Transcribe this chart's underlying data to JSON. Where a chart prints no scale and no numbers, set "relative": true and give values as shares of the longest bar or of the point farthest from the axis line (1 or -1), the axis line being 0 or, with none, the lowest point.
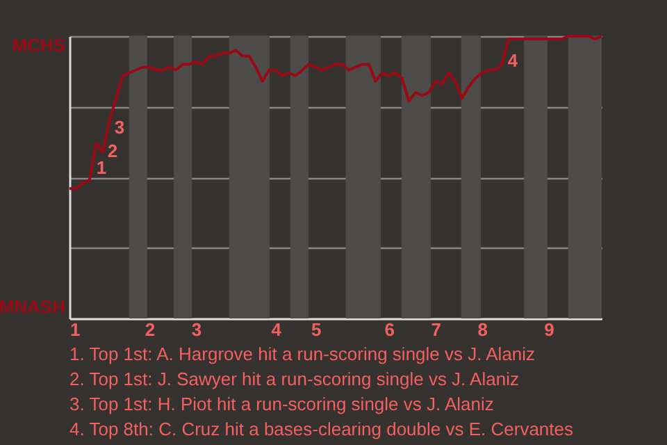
{
  "chart_data": {
    "type": "line",
    "relative": true,
    "grid": "y",
    "marker": "none",
    "line_style": "solid",
    "categories": [
      "1",
      null,
      null,
      null,
      null,
      null,
      null,
      null,
      null,
      null,
      null,
      null,
      "2",
      null,
      null,
      null,
      null,
      null,
      null,
      "3",
      null,
      null,
      null,
      null,
      null,
      null,
      null,
      null,
      null,
      null,
      null,
      "4",
      null,
      null,
      null,
      null,
      null,
      "5",
      null,
      null,
      null,
      null,
      null,
      null,
      null,
      null,
      null,
      null,
      "6",
      null,
      null,
      null,
      null,
      null,
      null,
      "7",
      null,
      null,
      null,
      null,
      null,
      null,
      "8",
      null,
      null,
      null,
      null,
      null,
      null,
      null,
      null,
      null,
      "9",
      null,
      null,
      null,
      null,
      null,
      null,
      null,
      null
    ],
    "series": [
      {
        "color": "#9a0a14",
        "values": [
          0.46,
          0.46,
          0.48,
          0.49,
          0.62,
          0.59,
          0.7,
          0.78,
          0.86,
          0.87,
          0.88,
          0.89,
          0.89,
          0.88,
          0.88,
          0.89,
          0.88,
          0.9,
          0.9,
          0.91,
          0.9,
          0.93,
          0.93,
          0.94,
          0.94,
          0.95,
          0.93,
          0.93,
          0.89,
          0.84,
          0.88,
          0.88,
          0.86,
          0.87,
          0.86,
          0.88,
          0.9,
          0.89,
          0.88,
          0.89,
          0.9,
          0.9,
          0.88,
          0.89,
          0.9,
          0.9,
          0.84,
          0.87,
          0.86,
          0.87,
          0.85,
          0.77,
          0.8,
          0.79,
          0.8,
          0.84,
          0.83,
          0.87,
          0.84,
          0.78,
          0.82,
          0.85,
          0.87,
          0.88,
          0.88,
          0.9,
          0.99,
          0.99,
          0.99,
          0.99,
          0.99,
          0.99,
          0.99,
          0.99,
          0.99,
          1.0,
          1.0,
          1.0,
          1.0,
          0.99,
          1.0
        ]
      }
    ],
    "annotations": [
      "MCHS",
      "MNASH",
      "1",
      "2",
      "3",
      "4",
      "1. Top 1st: A. Hargrove hit a run-scoring single vs J. Alaniz",
      "2. Top 1st: J. Sawyer hit a run-scoring single vs J. Alaniz",
      "3. Top 1st: H. Piot hit a run-scoring single vs J. Alaniz",
      "4. Top 8th: C. Cruz hit a bases-clearing double vs E. Cervantes"
    ]
  }
}
